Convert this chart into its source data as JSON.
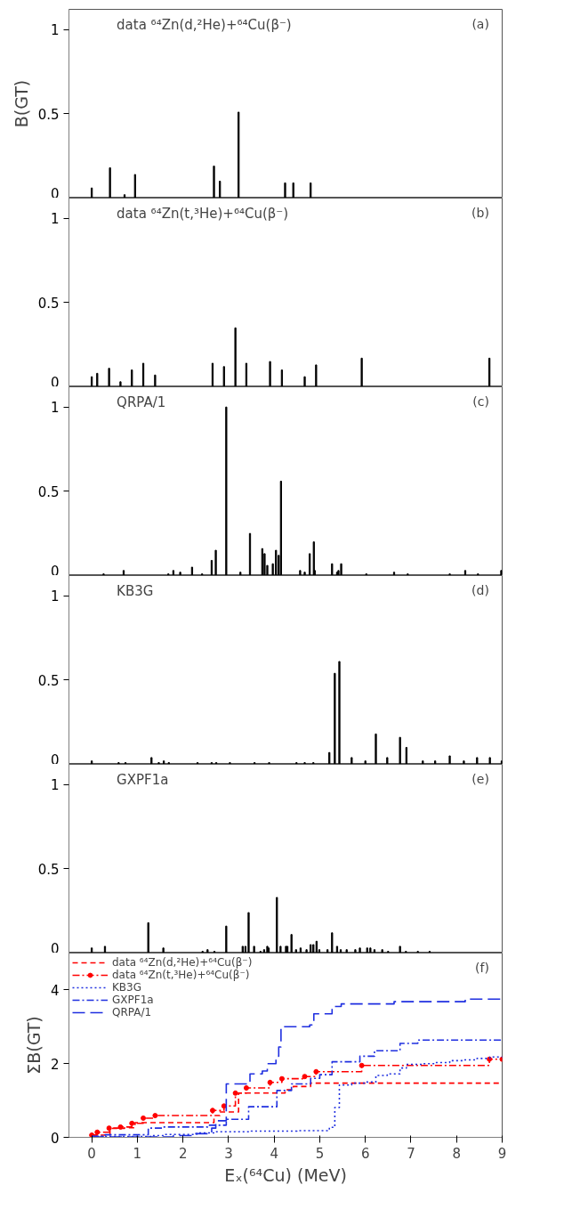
{
  "chart_data": [
    {
      "type": "bar",
      "ylabel": "B(GT)",
      "annotations": [
        "data ⁶⁴Zn(d,²He)+⁶⁴Cu(β⁻)",
        "(a)"
      ],
      "color": "#000000",
      "tick_labels": "y",
      "x": [
        0.0,
        0.4,
        0.72,
        0.95,
        2.68,
        2.81,
        3.22,
        4.24,
        4.42,
        4.8
      ],
      "values": [
        0.06,
        0.18,
        0.02,
        0.14,
        0.19,
        0.1,
        0.51,
        0.09,
        0.09,
        0.09
      ],
      "xlim": [
        -0.5,
        9
      ],
      "ylim": [
        0,
        1.12
      ],
      "yticks": [
        0,
        0.5,
        1
      ]
    },
    {
      "type": "bar",
      "annotations": [
        "data ⁶⁴Zn(t,³He)+⁶⁴Cu(β⁻)",
        "(b)"
      ],
      "color": "#000000",
      "tick_labels": "y",
      "x": [
        0.0,
        0.12,
        0.38,
        0.63,
        0.88,
        1.13,
        1.39,
        2.65,
        2.9,
        3.15,
        3.39,
        3.91,
        4.17,
        4.67,
        4.92,
        5.92,
        8.72
      ],
      "values": [
        0.06,
        0.08,
        0.11,
        0.03,
        0.1,
        0.14,
        0.07,
        0.14,
        0.12,
        0.35,
        0.14,
        0.15,
        0.1,
        0.06,
        0.13,
        0.17,
        0.17
      ],
      "xlim": [
        -0.5,
        9
      ],
      "ylim": [
        0,
        1.12
      ],
      "yticks": [
        0,
        0.5,
        1
      ]
    },
    {
      "type": "bar",
      "annotations": [
        "QRPA/1",
        "(c)"
      ],
      "color": "#000000",
      "tick_labels": "y",
      "x": [
        0.26,
        0.7,
        1.68,
        1.79,
        1.94,
        2.2,
        2.42,
        2.63,
        2.72,
        2.95,
        3.26,
        3.47,
        3.74,
        3.79,
        3.85,
        3.97,
        4.04,
        4.1,
        4.15,
        4.57,
        4.67,
        4.78,
        4.87,
        4.89,
        5.27,
        5.38,
        5.41,
        5.47,
        6.02,
        6.63,
        6.93,
        7.85,
        8.19,
        8.47,
        8.98
      ],
      "values": [
        0.01,
        0.03,
        0.01,
        0.03,
        0.02,
        0.05,
        0.01,
        0.09,
        0.15,
        1.0,
        0.02,
        0.25,
        0.16,
        0.13,
        0.06,
        0.07,
        0.15,
        0.12,
        0.56,
        0.03,
        0.02,
        0.13,
        0.2,
        0.03,
        0.07,
        0.02,
        0.03,
        0.07,
        0.01,
        0.02,
        0.01,
        0.01,
        0.03,
        0.01,
        0.03
      ],
      "xlim": [
        -0.5,
        9
      ],
      "ylim": [
        0,
        1.12
      ],
      "yticks": [
        0,
        0.5,
        1
      ]
    },
    {
      "type": "bar",
      "annotations": [
        "KB3G",
        "(d)"
      ],
      "color": "#000000",
      "tick_labels": "y",
      "x": [
        0.0,
        0.59,
        0.74,
        1.31,
        1.47,
        1.58,
        1.69,
        2.32,
        2.63,
        2.73,
        3.03,
        3.57,
        3.89,
        4.49,
        4.67,
        4.86,
        5.21,
        5.33,
        5.43,
        5.7,
        6.0,
        6.23,
        6.48,
        6.76,
        6.9,
        7.26,
        7.53,
        7.85,
        8.16,
        8.45,
        8.73,
        8.99
      ],
      "values": [
        0.02,
        0.01,
        0.01,
        0.04,
        0.01,
        0.02,
        0.01,
        0.01,
        0.01,
        0.01,
        0.01,
        0.01,
        0.01,
        0.01,
        0.01,
        0.01,
        0.07,
        0.54,
        0.61,
        0.04,
        0.02,
        0.18,
        0.04,
        0.16,
        0.1,
        0.02,
        0.02,
        0.05,
        0.02,
        0.04,
        0.04,
        0.02
      ],
      "xlim": [
        -0.5,
        9
      ],
      "ylim": [
        0,
        1.12
      ],
      "yticks": [
        0,
        0.5,
        1
      ]
    },
    {
      "type": "bar",
      "annotations": [
        "GXPF1a",
        "(e)"
      ],
      "color": "#000000",
      "tick_labels": "y",
      "x": [
        0.0,
        0.29,
        1.24,
        1.57,
        2.43,
        2.54,
        2.69,
        2.95,
        3.31,
        3.37,
        3.44,
        3.56,
        3.7,
        3.78,
        3.85,
        3.88,
        4.06,
        4.14,
        4.26,
        4.29,
        4.38,
        4.48,
        4.58,
        4.71,
        4.8,
        4.86,
        4.93,
        4.99,
        5.17,
        5.27,
        5.38,
        5.46,
        5.59,
        5.78,
        5.88,
        6.04,
        6.11,
        6.2,
        6.37,
        6.5,
        6.76,
        6.89,
        7.15,
        7.41
      ],
      "values": [
        0.03,
        0.04,
        0.18,
        0.03,
        0.01,
        0.02,
        0.01,
        0.16,
        0.04,
        0.04,
        0.24,
        0.04,
        0.01,
        0.02,
        0.04,
        0.03,
        0.33,
        0.04,
        0.04,
        0.04,
        0.11,
        0.02,
        0.03,
        0.02,
        0.05,
        0.05,
        0.07,
        0.02,
        0.02,
        0.12,
        0.04,
        0.02,
        0.02,
        0.02,
        0.03,
        0.03,
        0.03,
        0.02,
        0.02,
        0.01,
        0.04,
        0.01,
        0.01,
        0.01
      ],
      "xlim": [
        -0.5,
        9
      ],
      "ylim": [
        0,
        1.12
      ],
      "yticks": [
        0,
        0.5,
        1
      ]
    },
    {
      "type": "step",
      "ylabel": "ΣB(GT)",
      "xlabel": "Eₓ(⁶⁴Cu) (MeV)",
      "annotations": [
        "(f)"
      ],
      "legend": "top left",
      "xlim": [
        -0.5,
        9
      ],
      "ylim": [
        0,
        5
      ],
      "xticks": [
        0,
        1,
        2,
        3,
        4,
        5,
        6,
        7,
        8,
        9
      ],
      "yticks": [
        0,
        2,
        4
      ],
      "series": [
        {
          "name": "data ⁶⁴Zn(d,²He)+⁶⁴Cu(β⁻)",
          "color": "#ff0000",
          "line_style": "dashed",
          "x": [
            0,
            0.4,
            0.72,
            0.95,
            2.68,
            2.81,
            3.22,
            4.24,
            4.42,
            4.8,
            9
          ],
          "values": [
            0.06,
            0.24,
            0.26,
            0.4,
            0.59,
            0.69,
            1.2,
            1.29,
            1.38,
            1.47,
            1.47
          ]
        },
        {
          "name": "data ⁶⁴Zn(t,³He)+⁶⁴Cu(β⁻)",
          "color": "#ff0000",
          "line_style": "dashdot",
          "marker": "circle",
          "x": [
            0,
            0.12,
            0.38,
            0.63,
            0.88,
            1.13,
            1.39,
            2.65,
            2.9,
            3.15,
            3.39,
            3.91,
            4.17,
            4.67,
            4.92,
            5.92,
            8.72,
            9
          ],
          "values": [
            0.06,
            0.14,
            0.25,
            0.28,
            0.38,
            0.52,
            0.59,
            0.73,
            0.85,
            1.2,
            1.34,
            1.49,
            1.59,
            1.65,
            1.78,
            1.95,
            2.12,
            2.12
          ]
        },
        {
          "name": "KB3G",
          "color": "#1f2fe0",
          "line_style": "dotted",
          "x": [
            0,
            1.31,
            1.6,
            2.3,
            2.7,
            3.5,
            4.5,
            5.21,
            5.33,
            5.43,
            5.7,
            6.0,
            6.23,
            6.48,
            6.76,
            6.9,
            7.26,
            7.53,
            7.85,
            8.16,
            8.45,
            8.73,
            9
          ],
          "values": [
            0.02,
            0.05,
            0.08,
            0.12,
            0.15,
            0.17,
            0.18,
            0.27,
            0.81,
            1.42,
            1.47,
            1.5,
            1.68,
            1.72,
            1.88,
            1.98,
            2.0,
            2.03,
            2.08,
            2.1,
            2.14,
            2.18,
            2.2
          ]
        },
        {
          "name": "GXPF1a",
          "color": "#1f2fe0",
          "line_style": "dashdot",
          "x": [
            0,
            0.29,
            1.24,
            1.57,
            2.54,
            2.95,
            3.44,
            4.06,
            4.38,
            4.8,
            5.0,
            5.27,
            5.88,
            6.2,
            6.76,
            7.15,
            9
          ],
          "values": [
            0.03,
            0.07,
            0.25,
            0.28,
            0.33,
            0.49,
            0.83,
            1.27,
            1.45,
            1.6,
            1.7,
            2.05,
            2.2,
            2.35,
            2.55,
            2.64,
            2.64
          ]
        },
        {
          "name": "QRPA/1",
          "color": "#1f2fe0",
          "line_style": "longdash",
          "x": [
            0,
            1.79,
            2.2,
            2.63,
            2.72,
            2.95,
            3.47,
            3.74,
            3.85,
            4.04,
            4.1,
            4.15,
            4.78,
            4.87,
            5.27,
            5.47,
            6.63,
            8.19,
            9
          ],
          "values": [
            0.01,
            0.05,
            0.1,
            0.25,
            0.45,
            1.45,
            1.72,
            1.8,
            2.0,
            2.2,
            2.45,
            3.0,
            3.05,
            3.35,
            3.55,
            3.62,
            3.68,
            3.75,
            3.78
          ]
        }
      ]
    }
  ]
}
